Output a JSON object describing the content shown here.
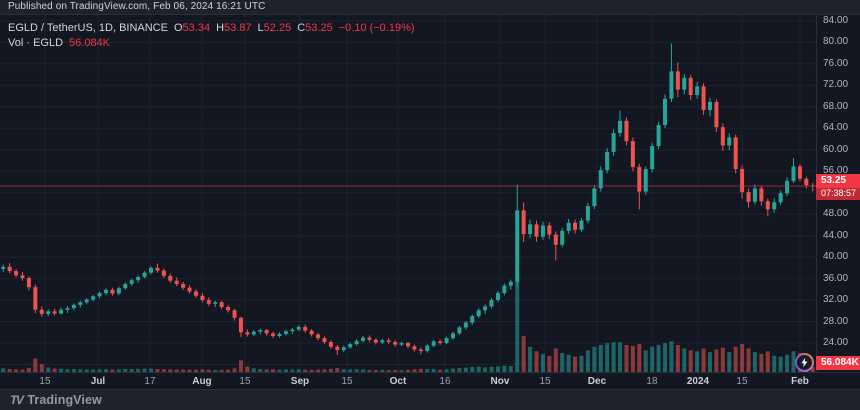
{
  "published_bar": {
    "text": "Published on TradingView.com, Feb 06, 2024 16:21 UTC"
  },
  "legend": {
    "symbol": "EGLD / TetherUS, 1D, BINANCE",
    "ohlc": [
      {
        "label": "O",
        "value": "53.34"
      },
      {
        "label": "H",
        "value": "53.87"
      },
      {
        "label": "L",
        "value": "52.25"
      },
      {
        "label": "C",
        "value": "53.25"
      }
    ],
    "change": "−0.10 (−0.19%)",
    "volume_label": "Vol · EGLD",
    "volume_value": "56.084K"
  },
  "price_axis": {
    "last_price_label": "53.25",
    "countdown": "07:38:57",
    "volume_badge": "56.084K",
    "ticks": [
      {
        "value": 84,
        "label": "84.00"
      },
      {
        "value": 80,
        "label": "80.00"
      },
      {
        "value": 76,
        "label": "76.00"
      },
      {
        "value": 72,
        "label": "72.00"
      },
      {
        "value": 68,
        "label": "68.00"
      },
      {
        "value": 64,
        "label": "64.00"
      },
      {
        "value": 60,
        "label": "60.00"
      },
      {
        "value": 56,
        "label": "56.00"
      },
      {
        "value": 52,
        "label": "52.00"
      },
      {
        "value": 48,
        "label": "48.00"
      },
      {
        "value": 44,
        "label": "44.00"
      },
      {
        "value": 40,
        "label": "40.00"
      },
      {
        "value": 36,
        "label": "36.00"
      },
      {
        "value": 32,
        "label": "32.00"
      },
      {
        "value": 28,
        "label": "28.00"
      },
      {
        "value": 24,
        "label": "24.00"
      },
      {
        "value": 20,
        "label": "20.00"
      }
    ]
  },
  "time_axis": {
    "ticks": [
      {
        "label": "15",
        "pos": 0.0551,
        "major": false
      },
      {
        "label": "Jul",
        "pos": 0.1201,
        "major": true
      },
      {
        "label": "17",
        "pos": 0.1838,
        "major": false
      },
      {
        "label": "Aug",
        "pos": 0.2475,
        "major": true
      },
      {
        "label": "15",
        "pos": 0.3002,
        "major": false
      },
      {
        "label": "Sep",
        "pos": 0.3676,
        "major": true
      },
      {
        "label": "15",
        "pos": 0.4252,
        "major": false
      },
      {
        "label": "Oct",
        "pos": 0.4877,
        "major": true
      },
      {
        "label": "16",
        "pos": 0.5453,
        "major": false
      },
      {
        "label": "Nov",
        "pos": 0.6127,
        "major": true
      },
      {
        "label": "15",
        "pos": 0.6679,
        "major": false
      },
      {
        "label": "Dec",
        "pos": 0.7316,
        "major": true
      },
      {
        "label": "18",
        "pos": 0.799,
        "major": false
      },
      {
        "label": "2024",
        "pos": 0.8554,
        "major": true
      },
      {
        "label": "15",
        "pos": 0.9093,
        "major": false
      },
      {
        "label": "Feb",
        "pos": 0.9804,
        "major": true
      }
    ]
  },
  "brand": {
    "mark": "TV",
    "word": "TradingView"
  },
  "colors": {
    "bg": "#131722",
    "panel": "#1e222d",
    "border": "#2a2e39",
    "grid": "#1e2231",
    "up": "#26a69a",
    "down": "#ef5350",
    "accent_red": "#f23645",
    "axis_text": "#b2b5be",
    "text": "#d1d4dc"
  },
  "chart_data": {
    "type": "candlestick",
    "title": "EGLD / TetherUS, 1D, BINANCE",
    "interval": "1D",
    "last_price": 53.25,
    "y_range": [
      18.6,
      85.1
    ],
    "grid": true,
    "volume_unit": "K",
    "candles_format": [
      "open",
      "high",
      "low",
      "close",
      "volume_K"
    ],
    "candles": [
      [
        37.8,
        38.6,
        37.2,
        38.2,
        40
      ],
      [
        38.2,
        38.9,
        37.0,
        37.4,
        34
      ],
      [
        37.4,
        37.8,
        36.2,
        36.6,
        30
      ],
      [
        36.6,
        37.2,
        35.6,
        36.1,
        28
      ],
      [
        36.1,
        36.4,
        33.8,
        34.4,
        46
      ],
      [
        34.4,
        34.9,
        29.6,
        30.2,
        150
      ],
      [
        30.2,
        30.8,
        28.9,
        29.4,
        88
      ],
      [
        29.4,
        30.3,
        29.0,
        29.9,
        50
      ],
      [
        29.9,
        30.4,
        29.1,
        29.5,
        38
      ],
      [
        29.5,
        30.6,
        29.3,
        30.2,
        36
      ],
      [
        30.2,
        30.9,
        29.6,
        30.5,
        30
      ],
      [
        30.5,
        31.4,
        30.1,
        31.1,
        32
      ],
      [
        31.1,
        31.9,
        30.6,
        31.6,
        30
      ],
      [
        31.6,
        32.4,
        31.2,
        32.1,
        28
      ],
      [
        32.1,
        33.0,
        31.8,
        32.7,
        30
      ],
      [
        32.7,
        33.6,
        32.3,
        33.3,
        29
      ],
      [
        33.3,
        34.2,
        32.9,
        33.9,
        31
      ],
      [
        33.9,
        34.3,
        32.8,
        33.2,
        27
      ],
      [
        33.2,
        34.5,
        32.9,
        34.2,
        30
      ],
      [
        34.2,
        35.3,
        33.9,
        35.0,
        33
      ],
      [
        35.0,
        36.0,
        34.6,
        35.7,
        34
      ],
      [
        35.7,
        36.6,
        35.2,
        36.3,
        35
      ],
      [
        36.3,
        37.4,
        36.0,
        37.1,
        36
      ],
      [
        37.1,
        38.3,
        36.8,
        38.0,
        38
      ],
      [
        38.0,
        38.8,
        37.1,
        37.5,
        33
      ],
      [
        37.5,
        37.9,
        36.1,
        36.5,
        30
      ],
      [
        36.5,
        36.9,
        35.2,
        35.6,
        28
      ],
      [
        35.6,
        36.2,
        34.6,
        35.0,
        26
      ],
      [
        35.0,
        35.4,
        33.9,
        34.3,
        27
      ],
      [
        34.3,
        34.8,
        33.2,
        33.6,
        25
      ],
      [
        33.6,
        34.0,
        32.4,
        32.8,
        26
      ],
      [
        32.8,
        33.3,
        31.6,
        32.0,
        27
      ],
      [
        32.0,
        32.5,
        30.9,
        31.3,
        25
      ],
      [
        31.3,
        31.9,
        30.7,
        31.6,
        22
      ],
      [
        31.6,
        31.9,
        30.3,
        30.7,
        24
      ],
      [
        30.7,
        31.1,
        29.7,
        30.1,
        26
      ],
      [
        30.1,
        30.4,
        28.2,
        28.7,
        40
      ],
      [
        28.7,
        28.9,
        25.1,
        26.0,
        130
      ],
      [
        26.0,
        26.6,
        25.2,
        25.6,
        60
      ],
      [
        25.6,
        26.4,
        25.3,
        26.1,
        40
      ],
      [
        26.1,
        26.7,
        25.6,
        26.4,
        32
      ],
      [
        26.4,
        26.6,
        25.4,
        25.8,
        28
      ],
      [
        25.8,
        26.1,
        24.9,
        25.3,
        30
      ],
      [
        25.3,
        26.0,
        25.0,
        25.7,
        26
      ],
      [
        25.7,
        26.5,
        25.4,
        26.2,
        28
      ],
      [
        26.2,
        26.8,
        25.7,
        26.5,
        27
      ],
      [
        26.5,
        27.3,
        26.2,
        27.0,
        30
      ],
      [
        27.0,
        27.4,
        25.9,
        26.3,
        26
      ],
      [
        26.3,
        26.6,
        25.2,
        25.6,
        24
      ],
      [
        25.6,
        25.9,
        24.5,
        24.9,
        26
      ],
      [
        24.9,
        25.2,
        23.8,
        24.2,
        28
      ],
      [
        24.2,
        24.5,
        22.9,
        23.3,
        34
      ],
      [
        23.3,
        23.6,
        21.8,
        22.7,
        45
      ],
      [
        22.7,
        23.5,
        22.3,
        23.2,
        30
      ],
      [
        23.2,
        24.1,
        22.9,
        23.8,
        28
      ],
      [
        23.8,
        24.7,
        23.5,
        24.4,
        30
      ],
      [
        24.4,
        25.3,
        24.1,
        25.0,
        29
      ],
      [
        25.0,
        25.4,
        24.2,
        24.6,
        24
      ],
      [
        24.6,
        24.9,
        23.7,
        24.1,
        22
      ],
      [
        24.1,
        24.8,
        23.8,
        24.5,
        23
      ],
      [
        24.5,
        24.9,
        23.8,
        24.2,
        21
      ],
      [
        24.2,
        24.5,
        23.3,
        23.7,
        22
      ],
      [
        23.7,
        24.3,
        23.4,
        24.0,
        20
      ],
      [
        24.0,
        24.2,
        23.0,
        23.4,
        24
      ],
      [
        23.4,
        23.7,
        22.4,
        22.8,
        30
      ],
      [
        22.8,
        23.2,
        21.9,
        22.5,
        36
      ],
      [
        22.5,
        23.8,
        22.2,
        23.5,
        32
      ],
      [
        23.5,
        24.6,
        23.2,
        24.3,
        34
      ],
      [
        24.3,
        24.7,
        23.6,
        24.0,
        26
      ],
      [
        24.0,
        25.2,
        23.8,
        24.9,
        30
      ],
      [
        24.9,
        26.1,
        24.6,
        25.8,
        38
      ],
      [
        25.8,
        27.2,
        25.5,
        26.9,
        44
      ],
      [
        26.9,
        28.1,
        26.5,
        27.8,
        48
      ],
      [
        27.8,
        29.3,
        27.4,
        29.0,
        55
      ],
      [
        29.0,
        30.5,
        28.7,
        30.1,
        60
      ],
      [
        30.1,
        31.2,
        29.4,
        30.8,
        52
      ],
      [
        30.8,
        32.4,
        30.4,
        32.0,
        58
      ],
      [
        32.0,
        33.7,
        31.6,
        33.3,
        62
      ],
      [
        33.3,
        35.1,
        32.9,
        34.7,
        70
      ],
      [
        34.7,
        35.8,
        33.9,
        35.4,
        66
      ],
      [
        35.4,
        53.5,
        34.6,
        48.7,
        1020
      ],
      [
        48.7,
        50.2,
        42.8,
        44.3,
        400
      ],
      [
        44.3,
        47.0,
        43.5,
        46.1,
        280
      ],
      [
        46.1,
        46.8,
        42.9,
        43.8,
        230
      ],
      [
        43.8,
        46.6,
        43.2,
        45.9,
        200
      ],
      [
        45.9,
        46.5,
        43.4,
        44.2,
        180
      ],
      [
        44.2,
        44.8,
        39.4,
        42.3,
        260
      ],
      [
        42.3,
        45.5,
        41.8,
        44.9,
        210
      ],
      [
        44.9,
        47.1,
        44.3,
        46.4,
        190
      ],
      [
        46.4,
        47.0,
        44.4,
        45.1,
        170
      ],
      [
        45.1,
        47.3,
        44.7,
        46.8,
        180
      ],
      [
        46.8,
        50.1,
        46.3,
        49.5,
        240
      ],
      [
        49.5,
        53.4,
        48.9,
        52.8,
        280
      ],
      [
        52.8,
        56.9,
        52.2,
        56.2,
        300
      ],
      [
        56.2,
        60.3,
        55.6,
        59.6,
        320
      ],
      [
        59.6,
        63.8,
        58.9,
        63.1,
        330
      ],
      [
        63.1,
        67.3,
        62.4,
        65.4,
        330
      ],
      [
        65.4,
        66.0,
        60.8,
        61.6,
        300
      ],
      [
        61.6,
        62.3,
        56.0,
        56.8,
        290
      ],
      [
        56.8,
        57.4,
        48.9,
        52.2,
        310
      ],
      [
        52.2,
        56.9,
        51.6,
        56.4,
        240
      ],
      [
        56.4,
        61.3,
        55.8,
        60.7,
        280
      ],
      [
        60.7,
        65.2,
        60.1,
        64.6,
        300
      ],
      [
        64.6,
        70.3,
        64.0,
        69.5,
        320
      ],
      [
        69.5,
        79.8,
        68.9,
        74.6,
        340
      ],
      [
        74.6,
        76.3,
        69.8,
        71.2,
        300
      ],
      [
        71.2,
        74.1,
        70.3,
        73.4,
        260
      ],
      [
        73.4,
        74.0,
        69.3,
        70.2,
        240
      ],
      [
        70.2,
        72.6,
        69.5,
        71.8,
        230
      ],
      [
        71.8,
        72.4,
        66.5,
        67.4,
        260
      ],
      [
        67.4,
        69.7,
        66.2,
        68.9,
        220
      ],
      [
        68.9,
        69.4,
        63.3,
        64.2,
        250
      ],
      [
        64.2,
        64.9,
        59.8,
        60.8,
        270
      ],
      [
        60.8,
        63.1,
        59.9,
        62.3,
        220
      ],
      [
        62.3,
        62.8,
        55.6,
        56.4,
        280
      ],
      [
        56.4,
        57.1,
        50.9,
        52.1,
        310
      ],
      [
        52.1,
        52.8,
        49.2,
        50.3,
        260
      ],
      [
        50.3,
        53.5,
        49.8,
        52.8,
        220
      ],
      [
        52.8,
        53.3,
        49.6,
        50.4,
        200
      ],
      [
        50.4,
        50.9,
        47.6,
        48.9,
        230
      ],
      [
        48.9,
        51.0,
        48.3,
        50.2,
        180
      ],
      [
        50.2,
        52.4,
        49.7,
        51.9,
        170
      ],
      [
        51.9,
        54.8,
        51.4,
        54.2,
        190
      ],
      [
        54.2,
        58.4,
        53.8,
        56.9,
        230
      ],
      [
        56.9,
        57.3,
        54.1,
        54.6,
        210
      ],
      [
        54.6,
        55.0,
        52.8,
        53.4,
        180
      ],
      [
        53.34,
        53.87,
        52.25,
        53.25,
        56
      ]
    ]
  }
}
